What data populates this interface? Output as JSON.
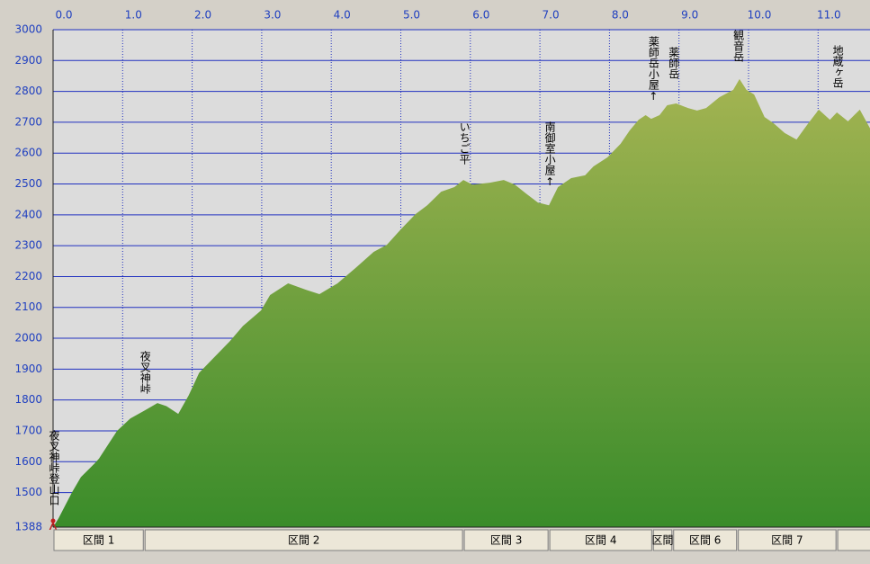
{
  "chart_data": {
    "type": "area",
    "x": [
      0,
      0.08,
      0.27,
      0.4,
      0.6,
      0.66,
      0.79,
      0.92,
      1.11,
      1.31,
      1.5,
      1.63,
      1.8,
      1.95,
      2.1,
      2.28,
      2.54,
      2.73,
      2.99,
      3.12,
      3.38,
      3.64,
      3.83,
      4.09,
      4.35,
      4.61,
      4.8,
      5.0,
      5.21,
      5.38,
      5.58,
      5.77,
      5.9,
      6.03,
      6.28,
      6.48,
      6.64,
      6.8,
      6.97,
      7.13,
      7.26,
      7.45,
      7.65,
      7.77,
      7.97,
      8.16,
      8.29,
      8.42,
      8.52,
      8.6,
      8.72,
      8.83,
      8.96,
      9.13,
      9.26,
      9.39,
      9.58,
      9.78,
      9.87,
      9.97,
      10.08,
      10.23,
      10.36,
      10.52,
      10.69,
      10.85,
      11.01,
      11.17,
      11.27,
      11.43,
      11.6,
      11.75
    ],
    "values": [
      1388,
      1417,
      1500,
      1550,
      1595,
      1610,
      1655,
      1700,
      1740,
      1765,
      1790,
      1780,
      1755,
      1815,
      1888,
      1930,
      1990,
      2040,
      2090,
      2140,
      2178,
      2157,
      2143,
      2178,
      2228,
      2280,
      2303,
      2353,
      2402,
      2431,
      2475,
      2490,
      2513,
      2498,
      2504,
      2513,
      2498,
      2469,
      2440,
      2431,
      2490,
      2519,
      2528,
      2557,
      2586,
      2630,
      2673,
      2708,
      2723,
      2711,
      2723,
      2755,
      2761,
      2746,
      2738,
      2746,
      2781,
      2805,
      2840,
      2805,
      2790,
      2717,
      2697,
      2665,
      2644,
      2694,
      2741,
      2708,
      2732,
      2703,
      2741,
      2679
    ],
    "xlim": [
      0,
      11.75
    ],
    "ylim": [
      1388,
      3000
    ],
    "xticks": [
      {
        "value": 0,
        "label": "0.0"
      },
      {
        "value": 1,
        "label": "1.0"
      },
      {
        "value": 2,
        "label": "2.0"
      },
      {
        "value": 3,
        "label": "3.0"
      },
      {
        "value": 4,
        "label": "4.0"
      },
      {
        "value": 5,
        "label": "5.0"
      },
      {
        "value": 6,
        "label": "6.0"
      },
      {
        "value": 7,
        "label": "7.0"
      },
      {
        "value": 8,
        "label": "8.0"
      },
      {
        "value": 9,
        "label": "9.0"
      },
      {
        "value": 10,
        "label": "10.0"
      },
      {
        "value": 11,
        "label": "11.0"
      }
    ],
    "yticks": [
      1388,
      1500,
      1600,
      1700,
      1800,
      1900,
      2000,
      2100,
      2200,
      2300,
      2400,
      2500,
      2600,
      2700,
      2800,
      2900,
      3000
    ],
    "grid": true,
    "waypoints": [
      {
        "label": "夜叉神峠登山口",
        "x": 0
      },
      {
        "label": "夜叉神峠",
        "x": 1.31
      },
      {
        "label": "いちご平",
        "x": 5.9
      },
      {
        "label": "南御室小屋↑",
        "x": 7.13
      },
      {
        "label": "薬師岳小屋↑",
        "x": 8.62
      },
      {
        "label": "薬師岳",
        "x": 8.91
      },
      {
        "label": "観音岳",
        "x": 9.84
      },
      {
        "label": "地蔵ヶ岳",
        "x": 11.27
      }
    ],
    "sections": [
      {
        "label": "区間 1",
        "start": 0,
        "end": 1.31
      },
      {
        "label": "区間 2",
        "start": 1.31,
        "end": 5.9
      },
      {
        "label": "区間 3",
        "start": 5.9,
        "end": 7.13
      },
      {
        "label": "区間 4",
        "start": 7.13,
        "end": 8.62
      },
      {
        "label": "区間",
        "start": 8.62,
        "end": 8.91
      },
      {
        "label": "区間 6",
        "start": 8.91,
        "end": 9.84
      },
      {
        "label": "区間 7",
        "start": 9.84,
        "end": 11.27
      }
    ]
  }
}
